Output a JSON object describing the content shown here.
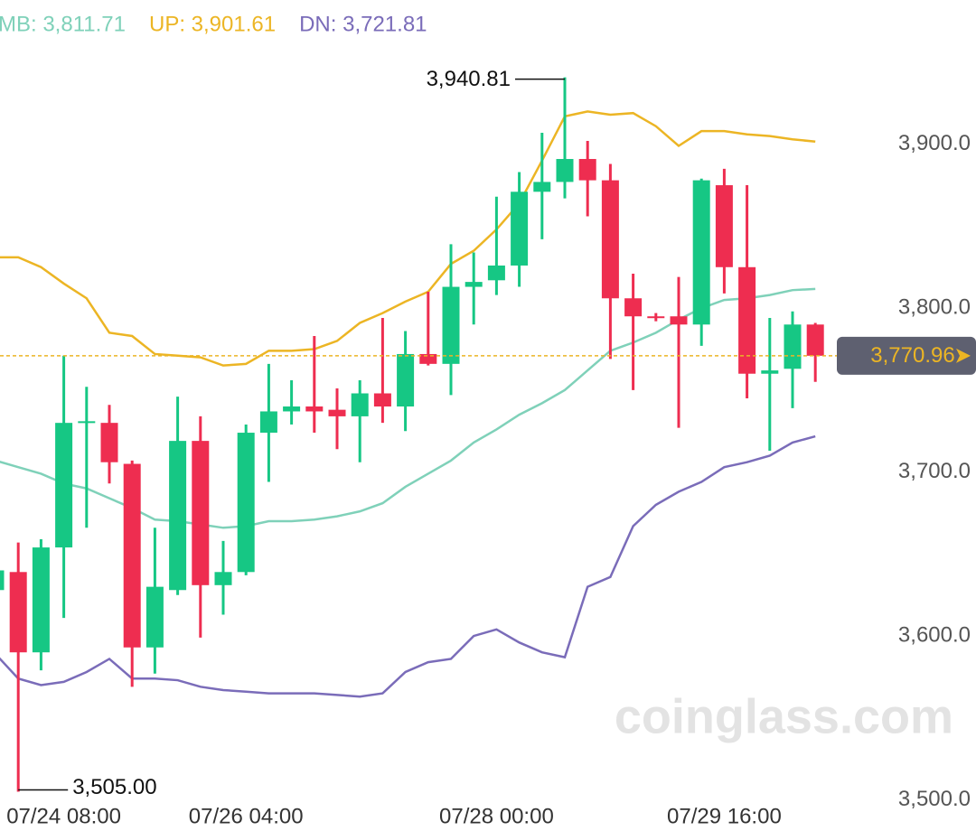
{
  "chart_data": {
    "type": "candlestick",
    "categories": [
      null,
      null,
      null,
      "07/24 08:00",
      null,
      null,
      null,
      null,
      null,
      null,
      null,
      "07/26 04:00",
      null,
      null,
      null,
      null,
      null,
      null,
      null,
      null,
      null,
      null,
      "07/28 00:00",
      null,
      null,
      null,
      null,
      null,
      null,
      null,
      null,
      null,
      "07/29 16:00",
      null,
      null,
      null,
      null
    ],
    "open": [
      3628,
      3639,
      3590,
      3654,
      3730,
      3730,
      3705,
      3593,
      3628,
      3719,
      3631,
      3639,
      3724,
      3737,
      3740,
      3738,
      3734,
      3748,
      3740,
      3772,
      3766,
      3813,
      3817,
      3826,
      3871,
      3877,
      3891,
      3878,
      3806,
      3795,
      3795,
      3790,
      3875,
      3825,
      3760,
      3763,
      3790
    ],
    "high": [
      3640,
      3657,
      3659,
      3771,
      3752,
      3741,
      3707,
      3666,
      3746,
      3734,
      3658,
      3729,
      3766,
      3756,
      3783,
      3751,
      3756,
      3794,
      3786,
      3810,
      3839,
      3834,
      3868,
      3883,
      3907,
      3940.81,
      3902,
      3888,
      3821,
      3797,
      3819,
      3879,
      3885,
      3875,
      3794,
      3798,
      3791
    ],
    "low": [
      3620,
      3505,
      3579,
      3611,
      3666,
      3693,
      3569,
      3577,
      3625,
      3599,
      3613,
      3637,
      3694,
      3729,
      3724,
      3714,
      3706,
      3730,
      3725,
      3765,
      3747,
      3790,
      3808,
      3813,
      3842,
      3867,
      3856,
      3769,
      3750,
      3792,
      3727,
      3777,
      3809,
      3745,
      3713,
      3739,
      3755
    ],
    "close": [
      3640,
      3590,
      3654,
      3730,
      3731,
      3706,
      3593,
      3630,
      3719,
      3631,
      3639,
      3724,
      3737,
      3740,
      3737,
      3734,
      3748,
      3740,
      3772,
      3766,
      3813,
      3816,
      3826,
      3871,
      3877,
      3891,
      3878,
      3806,
      3795,
      3794,
      3790,
      3878,
      3825,
      3760,
      3762,
      3790,
      3770.96
    ],
    "up_color": "#16c784",
    "down_color": "#ee2d50",
    "series": [
      {
        "name": "MB: 3,811.71",
        "color": "#7fd1b9",
        "values": [
          3707,
          3703,
          3699,
          3693,
          3690,
          3684,
          3678,
          3671,
          3670,
          3668,
          3666,
          3667,
          3670,
          3670,
          3671,
          3673,
          3676,
          3681,
          3691,
          3699,
          3707,
          3718,
          3726,
          3735,
          3742,
          3750,
          3762,
          3774,
          3779,
          3785,
          3793,
          3800,
          3805,
          3806,
          3808,
          3811,
          3811.71
        ]
      },
      {
        "name": "UP: 3,901.61",
        "color": "#ecb524",
        "values": [
          3831,
          3831,
          3825,
          3815,
          3806,
          3785,
          3783,
          3772,
          3771,
          3770,
          3765,
          3766,
          3774,
          3774,
          3775,
          3780,
          3791,
          3797,
          3804,
          3810,
          3827,
          3835,
          3848,
          3864,
          3890,
          3917,
          3920,
          3918,
          3919,
          3911,
          3899,
          3908,
          3908,
          3906,
          3905,
          3903,
          3901.61
        ]
      },
      {
        "name": "DN: 3,721.81",
        "color": "#7a6cb9",
        "values": [
          3589,
          3574,
          3570,
          3572,
          3578,
          3586,
          3574,
          3574,
          3573,
          3569,
          3567,
          3566,
          3565,
          3565,
          3565,
          3564,
          3563,
          3565,
          3578,
          3584,
          3586,
          3600,
          3604,
          3596,
          3590,
          3587,
          3630,
          3636,
          3667,
          3680,
          3688,
          3694,
          3703,
          3706,
          3710,
          3718,
          3721.81
        ]
      }
    ],
    "ylim": [
      3481,
      3988
    ],
    "yticks": [
      {
        "value": 3500,
        "label": "3,500.0"
      },
      {
        "value": 3600,
        "label": "3,600.0"
      },
      {
        "value": 3700,
        "label": "3,700.0"
      },
      {
        "value": 3800,
        "label": "3,800.0"
      },
      {
        "value": 3900,
        "label": "3,900.0"
      }
    ],
    "high_label": "3,940.81",
    "low_label": "3,505.00",
    "last_label": "3,770.96",
    "watermark": "coinglass.com"
  }
}
